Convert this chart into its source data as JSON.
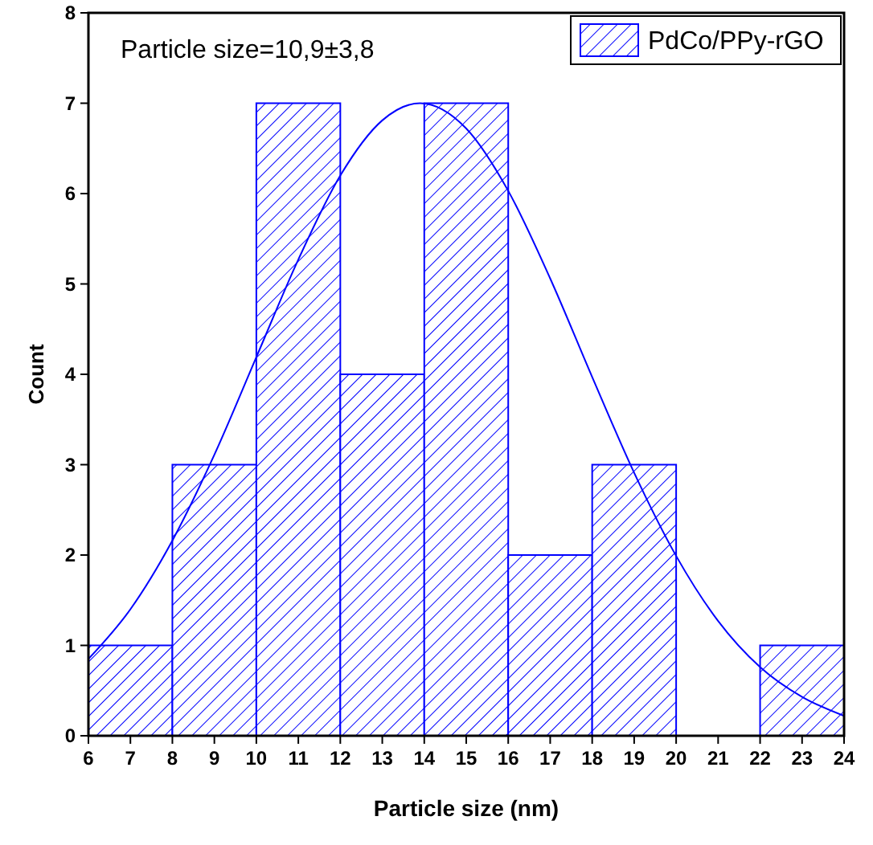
{
  "chart_data": {
    "type": "histogram",
    "xlabel": "Particle size (nm)",
    "ylabel": "Count",
    "annotations": [
      "Particle size=10,9±3,8"
    ],
    "bins": [
      6,
      8,
      10,
      12,
      14,
      16,
      18,
      20,
      22,
      24
    ],
    "series": [
      {
        "type": "histogram",
        "name": "PdCo/PPy-rGO",
        "color": "#0000ff",
        "values": [
          1,
          3,
          7,
          4,
          7,
          2,
          3,
          0,
          1
        ]
      },
      {
        "type": "line",
        "color": "#0000ff",
        "x": [
          6,
          7,
          8,
          9,
          10,
          11,
          12,
          13,
          13.9,
          15,
          16,
          17,
          18,
          19,
          20,
          21,
          22,
          23,
          24
        ],
        "values": [
          0.85,
          1.4,
          2.16,
          3.11,
          4.19,
          5.27,
          6.2,
          6.81,
          7,
          6.72,
          6.03,
          5.06,
          3.97,
          2.91,
          1.99,
          1.27,
          0.76,
          0.43,
          0.22
        ]
      }
    ],
    "xlim": [
      6,
      24
    ],
    "xticks": [
      6,
      7,
      8,
      9,
      10,
      11,
      12,
      13,
      14,
      15,
      16,
      17,
      18,
      19,
      20,
      21,
      22,
      23,
      24
    ],
    "ylim": [
      0,
      8
    ],
    "yticks": [
      0,
      1,
      2,
      3,
      4,
      5,
      6,
      7,
      8
    ],
    "grid": false,
    "legend": "top right",
    "line_style": "solid"
  }
}
